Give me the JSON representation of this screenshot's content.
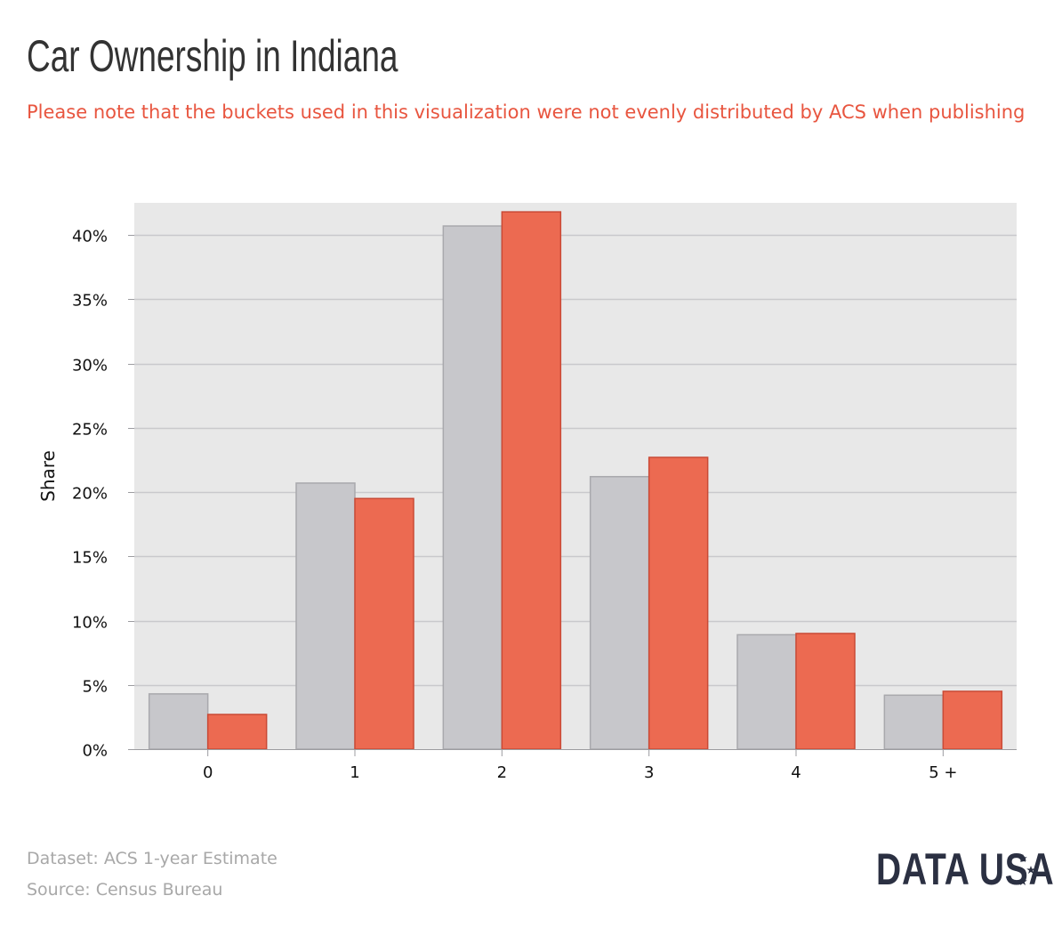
{
  "title": "Car Ownership in Indiana",
  "subtitle": "Please note that the buckets used in this visualization were not evenly distributed by ACS when publishing",
  "footer": {
    "dataset": "Dataset: ACS 1-year Estimate",
    "source": "Source: Census Bureau"
  },
  "brand": "DATA USA",
  "colors": {
    "background": "#ffffff",
    "plot_background": "#e8e8e8",
    "gridline": "#c9c9cc",
    "bar_grey": "#c7c7cb",
    "bar_grey_stroke": "#a9a9ad",
    "bar_red": "#ec6a51",
    "bar_red_stroke": "#c94a36",
    "title": "#333333",
    "subtitle": "#e8553f",
    "footer": "#a8a8a8",
    "brand": "#2b3042"
  },
  "chart_data": {
    "type": "bar",
    "categories": [
      "0",
      "1",
      "2",
      "3",
      "4",
      "5 +"
    ],
    "series": [
      {
        "values": [
          4.3,
          20.7,
          40.7,
          21.2,
          8.9,
          4.2
        ],
        "color": "#c7c7cb"
      },
      {
        "values": [
          2.7,
          19.5,
          41.8,
          22.7,
          9.0,
          4.5
        ],
        "color": "#ec6a51"
      }
    ],
    "ylabel": "Share",
    "xlabel": "",
    "ylim": [
      0,
      42.5
    ],
    "yticks": [
      0,
      5,
      10,
      15,
      20,
      25,
      30,
      35,
      40
    ],
    "ytick_labels": [
      "0%",
      "5%",
      "10%",
      "15%",
      "20%",
      "25%",
      "30%",
      "35%",
      "40%"
    ],
    "grid": true,
    "legend": "none"
  }
}
